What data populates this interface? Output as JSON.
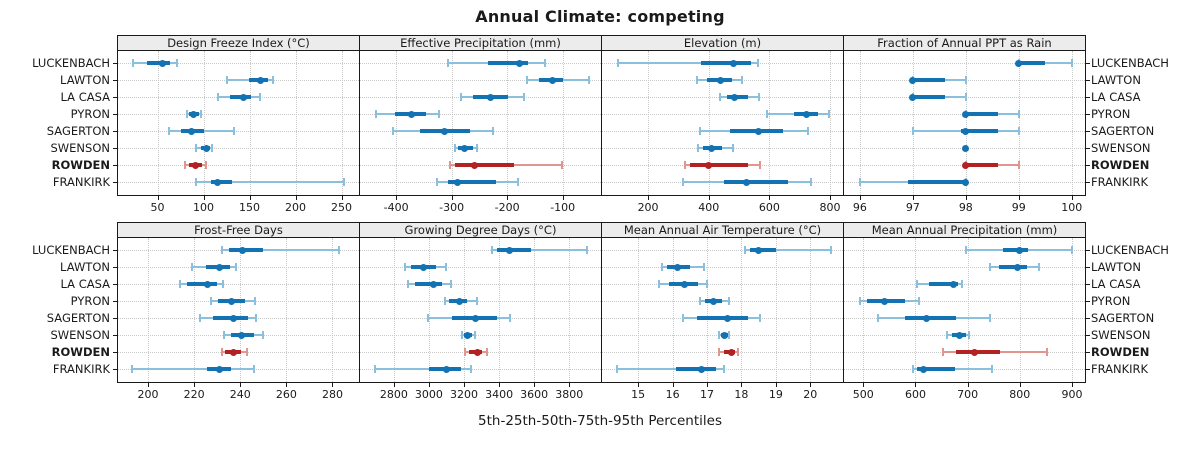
{
  "title": "Annual Climate: competing",
  "xlabel": "5th-25th-50th-75th-95th Percentiles",
  "colors": {
    "series": "#1272b2",
    "series_light": "#8abfde",
    "highlight": "#b22222",
    "highlight_light": "#e2948e",
    "strip_bg": "#ececec",
    "grid": "#c9c9c9",
    "frame": "#1a1a1a"
  },
  "chart_data": {
    "type": "dotplot-interval",
    "title": "Annual Climate: competing",
    "xlabel": "5th-25th-50th-75th-95th Percentiles",
    "percentile_labels": [
      "5th",
      "25th",
      "50th",
      "75th",
      "95th"
    ],
    "layout": {
      "rows": 2,
      "cols": 4,
      "grid": "dotted",
      "legend": "none",
      "site_labels": "both-sides"
    },
    "sites": [
      "LUCKENBACH",
      "LAWTON",
      "LA CASA",
      "PYRON",
      "SAGERTON",
      "SWENSON",
      "ROWDEN",
      "FRANKIRK"
    ],
    "highlight_site": "ROWDEN",
    "panels": [
      {
        "title": "Design Freeze Index (°C)",
        "xlim": [
          7,
          269
        ],
        "ticks": [
          50,
          100,
          150,
          200,
          250
        ],
        "values": {
          "LUCKENBACH": [
            23,
            39,
            55,
            64,
            71
          ],
          "LAWTON": [
            125,
            149,
            162,
            170,
            176
          ],
          "LA CASA": [
            116,
            129,
            143,
            152,
            161
          ],
          "PYRON": [
            82,
            84,
            89,
            95,
            97
          ],
          "SAGERTON": [
            62,
            75,
            87,
            100,
            133
          ],
          "SWENSON": [
            92,
            97,
            103,
            107,
            109
          ],
          "ROWDEN": [
            80,
            84,
            91,
            98,
            103
          ],
          "FRANKIRK": [
            92,
            108,
            115,
            131,
            253
          ]
        }
      },
      {
        "title": "Effective Precipitation (mm)",
        "xlim": [
          -465,
          -31
        ],
        "ticks": [
          -400,
          -300,
          -200,
          -100
        ],
        "values": {
          "LUCKENBACH": [
            -306,
            -235,
            -177,
            -163,
            -131
          ],
          "LAWTON": [
            -165,
            -142,
            -119,
            -99,
            -53
          ],
          "LA CASA": [
            -283,
            -262,
            -230,
            -199,
            -170
          ],
          "PYRON": [
            -437,
            -402,
            -372,
            -347,
            -322
          ],
          "SAGERTON": [
            -406,
            -357,
            -312,
            -267,
            -225
          ],
          "SWENSON": [
            -294,
            -288,
            -276,
            -261,
            -254
          ],
          "ROWDEN": [
            -303,
            -294,
            -258,
            -187,
            -101
          ],
          "FRANKIRK": [
            -327,
            -306,
            -290,
            -220,
            -181
          ]
        }
      },
      {
        "title": "Elevation (m)",
        "xlim": [
          48,
          843
        ],
        "ticks": [
          200,
          400,
          600,
          800
        ],
        "values": {
          "LUCKENBACH": [
            100,
            374,
            483,
            540,
            561
          ],
          "LAWTON": [
            360,
            394,
            438,
            476,
            509
          ],
          "LA CASA": [
            436,
            460,
            485,
            531,
            565
          ],
          "PYRON": [
            593,
            683,
            722,
            760,
            798
          ],
          "SAGERTON": [
            372,
            470,
            563,
            645,
            727
          ],
          "SWENSON": [
            364,
            381,
            408,
            443,
            481
          ],
          "ROWDEN": [
            323,
            339,
            398,
            531,
            569
          ],
          "FRANKIRK": [
            316,
            449,
            526,
            662,
            738
          ]
        }
      },
      {
        "title": "Fraction of Annual PPT as Rain",
        "xlim": [
          95.7,
          100.25
        ],
        "ticks": [
          96,
          97,
          98,
          99,
          100
        ],
        "values": {
          "LUCKENBACH": [
            99,
            99,
            99,
            99.5,
            100
          ],
          "LAWTON": [
            97,
            97,
            97,
            97.6,
            98
          ],
          "LA CASA": [
            97,
            97,
            97,
            97.6,
            98
          ],
          "PYRON": [
            98,
            98,
            98,
            98.6,
            99
          ],
          "SAGERTON": [
            97,
            97.9,
            98,
            98.6,
            99
          ],
          "SWENSON": [
            98,
            98,
            98,
            98,
            98
          ],
          "ROWDEN": [
            98,
            98,
            98,
            98.6,
            99
          ],
          "FRANKIRK": [
            96,
            96.9,
            98,
            98,
            98
          ]
        }
      },
      {
        "title": "Frost-Free Days",
        "xlim": [
          187,
          291.5
        ],
        "ticks": [
          200,
          220,
          240,
          260,
          280
        ],
        "values": {
          "LUCKENBACH": [
            232,
            235,
            241,
            250,
            283
          ],
          "LAWTON": [
            219,
            225,
            231,
            235.5,
            238
          ],
          "LA CASA": [
            214,
            217,
            226,
            230,
            232.5
          ],
          "PYRON": [
            227.5,
            230.5,
            236,
            242,
            246.5
          ],
          "SAGERTON": [
            222.5,
            228,
            237,
            243.5,
            247
          ],
          "SWENSON": [
            233,
            236,
            240.5,
            246,
            250
          ],
          "ROWDEN": [
            232,
            233.5,
            237,
            240.5,
            243
          ],
          "FRANKIRK": [
            193,
            225.5,
            231,
            236,
            246
          ]
        }
      },
      {
        "title": "Growing Degree Days (°C)",
        "xlim": [
          2607,
          3981
        ],
        "ticks": [
          2800,
          3000,
          3200,
          3400,
          3600,
          3800
        ],
        "values": {
          "LUCKENBACH": [
            3362,
            3390,
            3460,
            3580,
            3900
          ],
          "LAWTON": [
            2866,
            2898,
            2968,
            3038,
            3100
          ],
          "LA CASA": [
            2880,
            2922,
            3026,
            3075,
            3128
          ],
          "PYRON": [
            3090,
            3115,
            3172,
            3219,
            3272
          ],
          "SAGERTON": [
            2992,
            3134,
            3266,
            3390,
            3460
          ],
          "SWENSON": [
            3190,
            3200,
            3219,
            3247,
            3260
          ],
          "ROWDEN": [
            3204,
            3228,
            3275,
            3304,
            3332
          ],
          "FRANKIRK": [
            2691,
            3002,
            3100,
            3181,
            3238
          ]
        }
      },
      {
        "title": "Mean Annual Air Temperature (°C)",
        "xlim": [
          13.95,
          20.95
        ],
        "ticks": [
          15,
          16,
          17,
          18,
          19,
          20
        ],
        "values": {
          "LUCKENBACH": [
            18.1,
            18.25,
            18.5,
            19.0,
            20.6
          ],
          "LAWTON": [
            15.7,
            15.85,
            16.15,
            16.5,
            16.9
          ],
          "LA CASA": [
            15.6,
            15.9,
            16.35,
            16.75,
            17.0
          ],
          "PYRON": [
            16.8,
            16.95,
            17.2,
            17.45,
            17.65
          ],
          "SAGERTON": [
            16.3,
            16.7,
            17.6,
            18.2,
            18.55
          ],
          "SWENSON": [
            17.35,
            17.4,
            17.5,
            17.6,
            17.65
          ],
          "ROWDEN": [
            17.35,
            17.5,
            17.7,
            17.8,
            17.9
          ],
          "FRANKIRK": [
            14.4,
            16.1,
            16.85,
            17.25,
            17.5
          ]
        }
      },
      {
        "title": "Mean Annual Precipitation (mm)",
        "xlim": [
          463,
          925
        ],
        "ticks": [
          500,
          600,
          700,
          800,
          900
        ],
        "values": {
          "LUCKENBACH": [
            697,
            768,
            800,
            815,
            900
          ],
          "LAWTON": [
            742,
            760,
            795,
            814,
            836
          ],
          "LA CASA": [
            602,
            625,
            673,
            682,
            689
          ],
          "PYRON": [
            494,
            507,
            540,
            580,
            606
          ],
          "SAGERTON": [
            529,
            580,
            621,
            678,
            743
          ],
          "SWENSON": [
            661,
            670,
            684,
            697,
            703
          ],
          "ROWDEN": [
            652,
            678,
            713,
            763,
            852
          ],
          "FRANKIRK": [
            596,
            602,
            615,
            675,
            747
          ]
        }
      }
    ]
  }
}
